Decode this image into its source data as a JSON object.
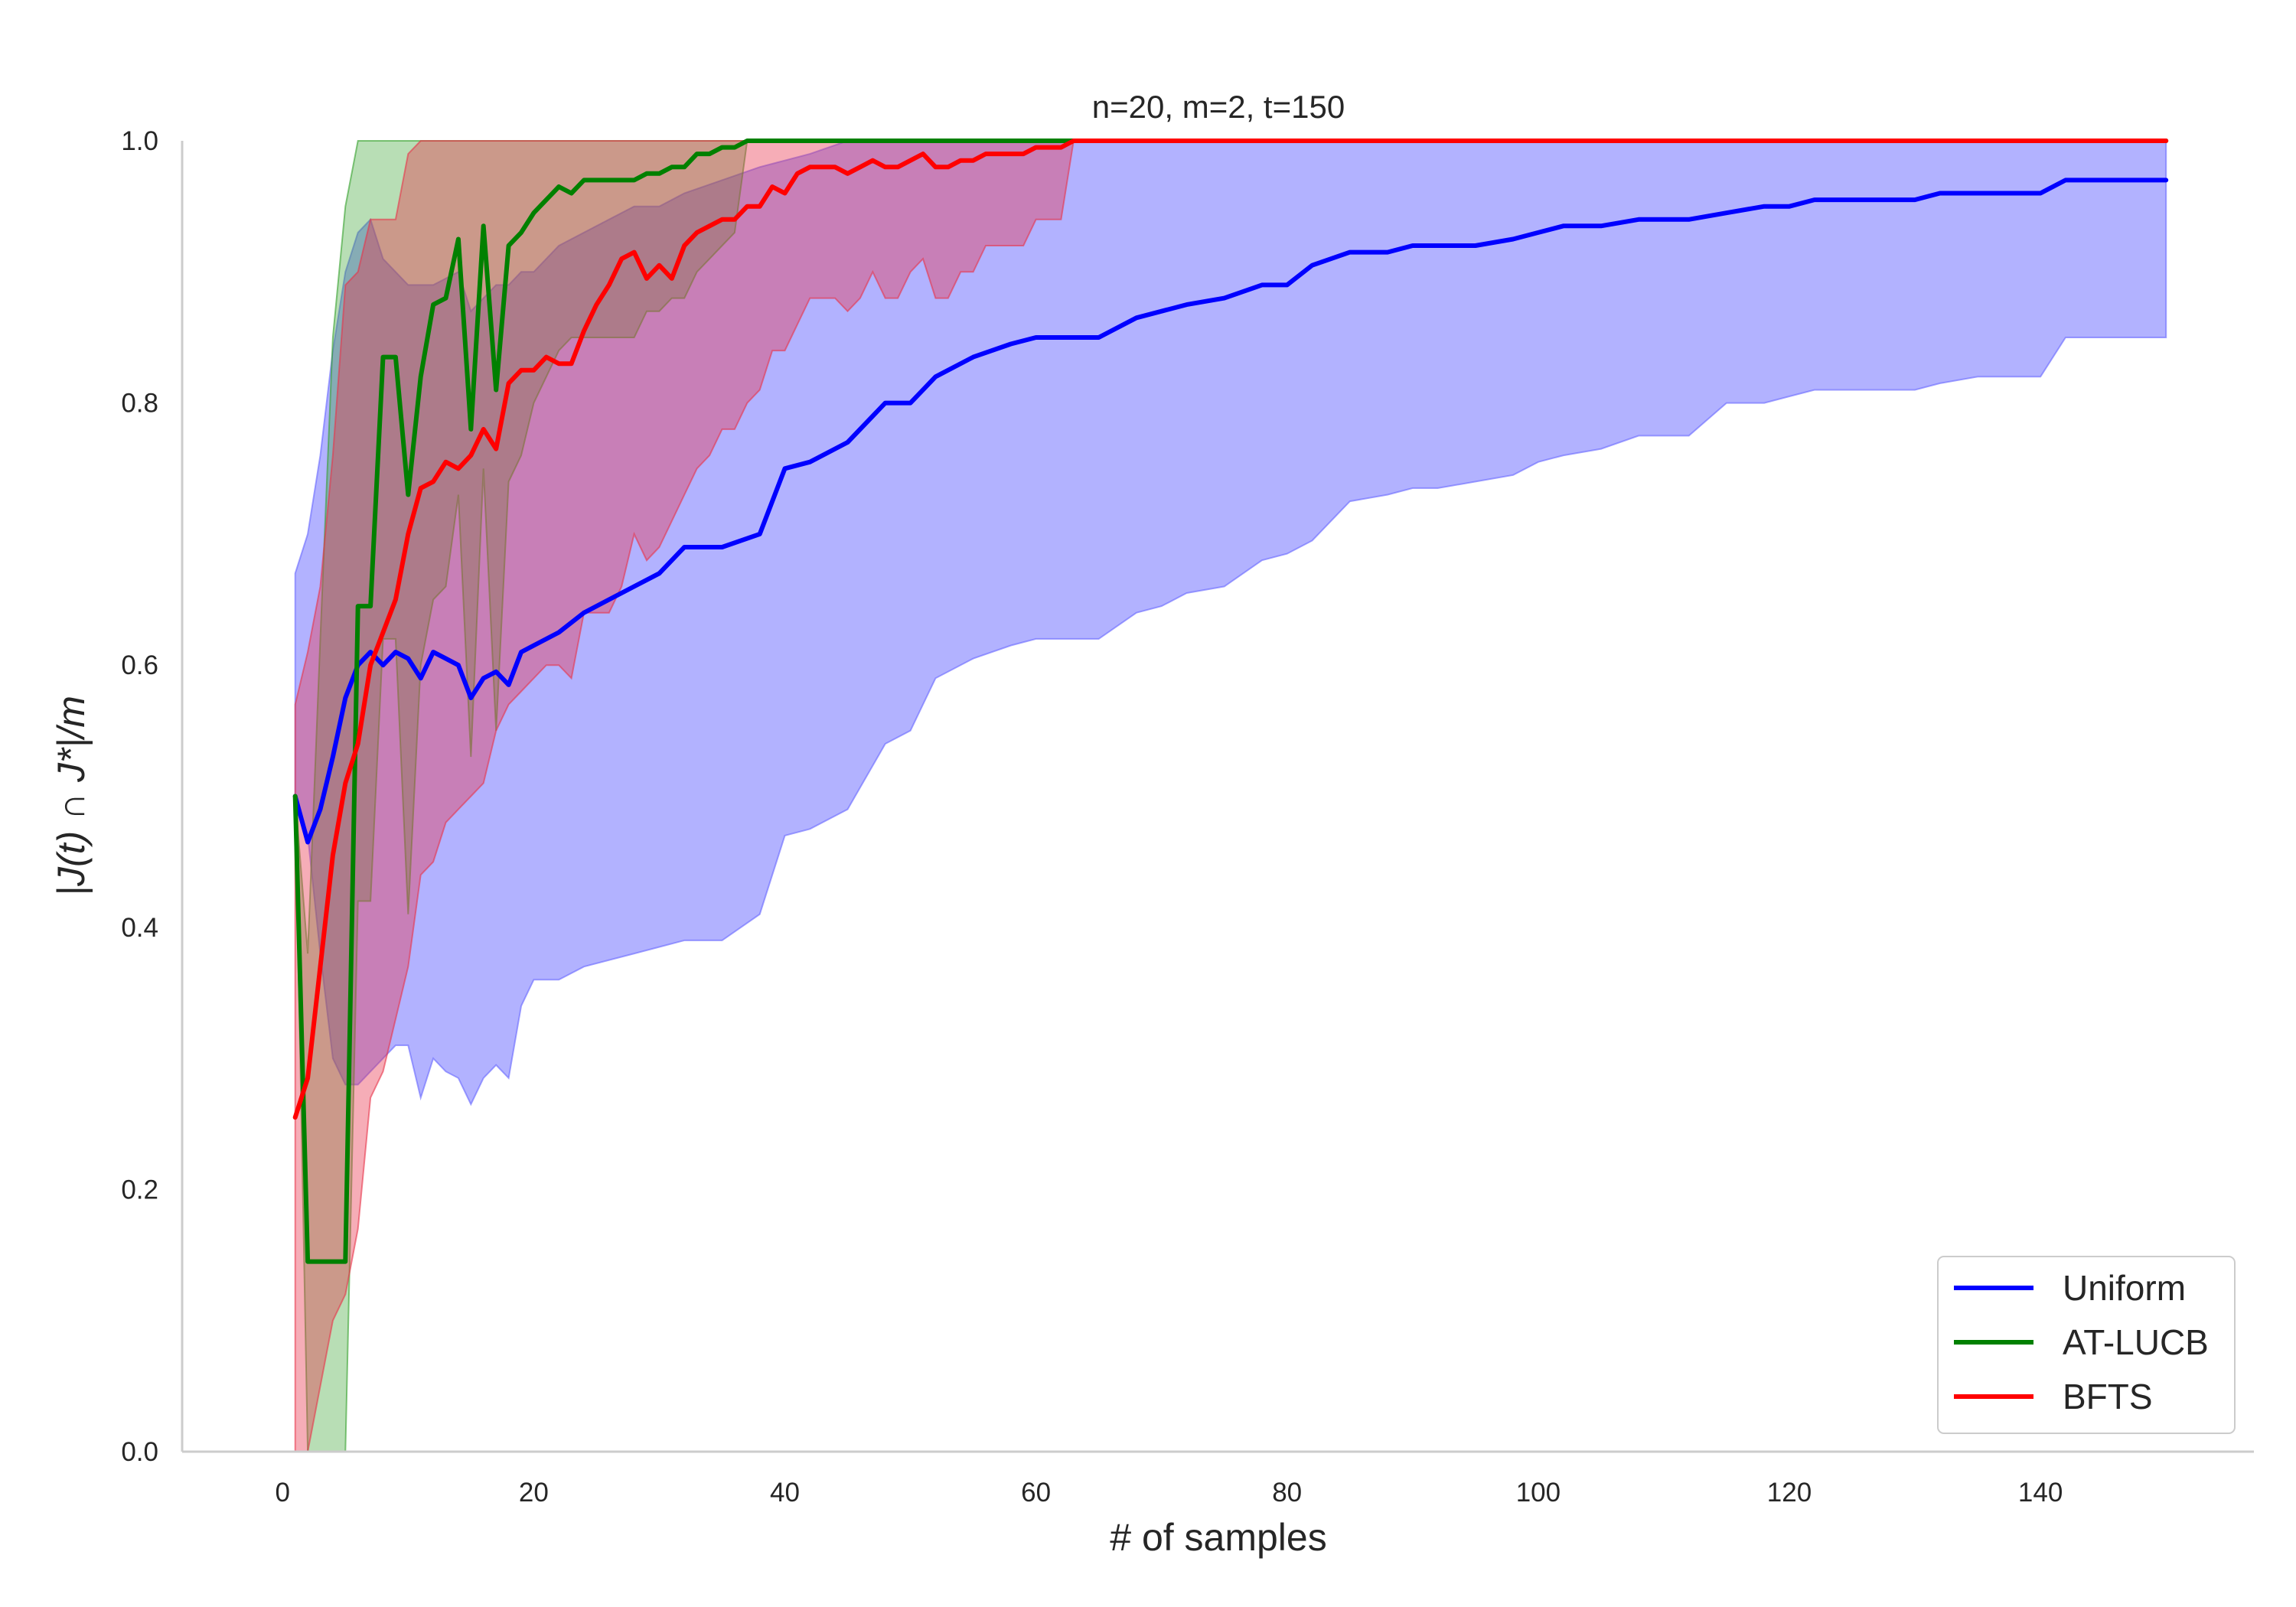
{
  "chart_data": {
    "type": "line",
    "title": "n=20, m=2, t=150",
    "xlabel": "# of samples",
    "ylabel": "|J(t) ∩ J*|/m",
    "xlim": [
      -8,
      157
    ],
    "ylim": [
      0,
      1.0
    ],
    "xticks": [
      0,
      20,
      40,
      60,
      80,
      100,
      120,
      140
    ],
    "yticks": [
      0.0,
      0.2,
      0.4,
      0.6,
      0.8,
      1.0
    ],
    "xtick_labels": [
      "0",
      "20",
      "40",
      "60",
      "80",
      "100",
      "120",
      "140"
    ],
    "ytick_labels": [
      "0.0",
      "0.2",
      "0.4",
      "0.6",
      "0.8",
      "1.0"
    ],
    "grid": false,
    "legend_position": "lower-right",
    "series": [
      {
        "name": "Uniform",
        "color": "#0000ff",
        "band_color": "#6666ff",
        "band_opacity": 0.5,
        "x": [
          1,
          2,
          3,
          4,
          5,
          6,
          7,
          8,
          9,
          10,
          11,
          12,
          13,
          14,
          15,
          16,
          17,
          18,
          19,
          20,
          22,
          24,
          26,
          28,
          30,
          32,
          35,
          38,
          40,
          42,
          45,
          48,
          50,
          52,
          55,
          58,
          60,
          62,
          65,
          68,
          70,
          72,
          75,
          78,
          80,
          82,
          85,
          88,
          90,
          92,
          95,
          98,
          100,
          102,
          105,
          108,
          110,
          112,
          115,
          118,
          120,
          122,
          125,
          128,
          130,
          132,
          135,
          138,
          140,
          142,
          145,
          148,
          150
        ],
        "y": [
          0.5,
          0.465,
          0.49,
          0.53,
          0.575,
          0.6,
          0.61,
          0.6,
          0.61,
          0.605,
          0.59,
          0.61,
          0.605,
          0.6,
          0.575,
          0.59,
          0.595,
          0.585,
          0.61,
          0.615,
          0.625,
          0.64,
          0.65,
          0.66,
          0.67,
          0.69,
          0.69,
          0.7,
          0.75,
          0.755,
          0.77,
          0.8,
          0.8,
          0.82,
          0.835,
          0.845,
          0.85,
          0.85,
          0.85,
          0.865,
          0.87,
          0.875,
          0.88,
          0.89,
          0.89,
          0.905,
          0.915,
          0.915,
          0.92,
          0.92,
          0.92,
          0.925,
          0.93,
          0.935,
          0.935,
          0.94,
          0.94,
          0.94,
          0.945,
          0.95,
          0.95,
          0.955,
          0.955,
          0.955,
          0.955,
          0.96,
          0.96,
          0.96,
          0.96,
          0.97,
          0.97,
          0.97,
          0.97
        ],
        "lower": [
          0.5,
          0.47,
          0.38,
          0.3,
          0.28,
          0.28,
          0.29,
          0.3,
          0.31,
          0.31,
          0.27,
          0.3,
          0.29,
          0.285,
          0.265,
          0.285,
          0.295,
          0.285,
          0.34,
          0.36,
          0.36,
          0.37,
          0.375,
          0.38,
          0.385,
          0.39,
          0.39,
          0.41,
          0.47,
          0.475,
          0.49,
          0.54,
          0.55,
          0.59,
          0.605,
          0.615,
          0.62,
          0.62,
          0.62,
          0.64,
          0.645,
          0.655,
          0.66,
          0.68,
          0.685,
          0.695,
          0.725,
          0.73,
          0.735,
          0.735,
          0.74,
          0.745,
          0.755,
          0.76,
          0.765,
          0.775,
          0.775,
          0.775,
          0.8,
          0.8,
          0.805,
          0.81,
          0.81,
          0.81,
          0.81,
          0.815,
          0.82,
          0.82,
          0.82,
          0.85,
          0.85,
          0.85,
          0.85
        ],
        "upper": [
          0.67,
          0.7,
          0.76,
          0.84,
          0.9,
          0.93,
          0.94,
          0.91,
          0.9,
          0.89,
          0.89,
          0.89,
          0.895,
          0.9,
          0.87,
          0.88,
          0.89,
          0.89,
          0.9,
          0.9,
          0.92,
          0.93,
          0.94,
          0.95,
          0.95,
          0.96,
          0.97,
          0.98,
          0.985,
          0.99,
          1.0,
          1.0,
          1.0,
          1.0,
          1.0,
          1.0,
          1.0,
          1.0,
          1.0,
          1.0,
          1.0,
          1.0,
          1.0,
          1.0,
          1.0,
          1.0,
          1.0,
          1.0,
          1.0,
          1.0,
          1.0,
          1.0,
          1.0,
          1.0,
          1.0,
          1.0,
          1.0,
          1.0,
          1.0,
          1.0,
          1.0,
          1.0,
          1.0,
          1.0,
          1.0,
          1.0,
          1.0,
          1.0,
          1.0,
          1.0,
          1.0,
          1.0,
          1.0
        ]
      },
      {
        "name": "AT-LUCB",
        "color": "#008000",
        "band_color": "#33a02c",
        "band_opacity": 0.35,
        "x": [
          1,
          2,
          3,
          4,
          5,
          6,
          7,
          8,
          9,
          10,
          11,
          12,
          13,
          14,
          15,
          16,
          17,
          18,
          19,
          20,
          21,
          22,
          23,
          24,
          25,
          26,
          27,
          28,
          29,
          30,
          31,
          32,
          33,
          34,
          35,
          36,
          37,
          38,
          40,
          150
        ],
        "y": [
          0.5,
          0.145,
          0.145,
          0.145,
          0.145,
          0.645,
          0.645,
          0.835,
          0.835,
          0.73,
          0.82,
          0.875,
          0.88,
          0.925,
          0.78,
          0.935,
          0.81,
          0.92,
          0.93,
          0.945,
          0.955,
          0.965,
          0.96,
          0.97,
          0.97,
          0.97,
          0.97,
          0.97,
          0.975,
          0.975,
          0.98,
          0.98,
          0.99,
          0.99,
          0.995,
          0.995,
          1.0,
          1.0,
          1.0,
          1.0
        ],
        "lower": [
          0.5,
          0.0,
          0.0,
          0.0,
          0.0,
          0.42,
          0.42,
          0.62,
          0.62,
          0.41,
          0.6,
          0.65,
          0.66,
          0.73,
          0.53,
          0.75,
          0.55,
          0.74,
          0.76,
          0.8,
          0.82,
          0.84,
          0.85,
          0.85,
          0.85,
          0.85,
          0.85,
          0.85,
          0.87,
          0.87,
          0.88,
          0.88,
          0.9,
          0.91,
          0.92,
          0.93,
          1.0,
          1.0,
          1.0,
          1.0
        ],
        "upper": [
          0.5,
          0.38,
          0.62,
          0.85,
          0.95,
          1.0,
          1.0,
          1.0,
          1.0,
          1.0,
          1.0,
          1.0,
          1.0,
          1.0,
          1.0,
          1.0,
          1.0,
          1.0,
          1.0,
          1.0,
          1.0,
          1.0,
          1.0,
          1.0,
          1.0,
          1.0,
          1.0,
          1.0,
          1.0,
          1.0,
          1.0,
          1.0,
          1.0,
          1.0,
          1.0,
          1.0,
          1.0,
          1.0,
          1.0,
          1.0
        ]
      },
      {
        "name": "BFTS",
        "color": "#ff0000",
        "band_color": "#e8334a",
        "band_opacity": 0.4,
        "x": [
          1,
          2,
          3,
          4,
          5,
          6,
          7,
          8,
          9,
          10,
          11,
          12,
          13,
          14,
          15,
          16,
          17,
          18,
          19,
          20,
          21,
          22,
          23,
          24,
          25,
          26,
          27,
          28,
          29,
          30,
          31,
          32,
          33,
          34,
          35,
          36,
          37,
          38,
          39,
          40,
          41,
          42,
          43,
          44,
          45,
          46,
          47,
          48,
          49,
          50,
          51,
          52,
          53,
          54,
          55,
          56,
          57,
          58,
          59,
          60,
          61,
          62,
          63,
          150
        ],
        "y": [
          0.255,
          0.285,
          0.37,
          0.455,
          0.51,
          0.54,
          0.6,
          0.625,
          0.65,
          0.7,
          0.735,
          0.74,
          0.755,
          0.75,
          0.76,
          0.78,
          0.765,
          0.815,
          0.825,
          0.825,
          0.835,
          0.83,
          0.83,
          0.855,
          0.875,
          0.89,
          0.91,
          0.915,
          0.895,
          0.905,
          0.895,
          0.92,
          0.93,
          0.935,
          0.94,
          0.94,
          0.95,
          0.95,
          0.965,
          0.96,
          0.975,
          0.98,
          0.98,
          0.98,
          0.975,
          0.98,
          0.985,
          0.98,
          0.98,
          0.985,
          0.99,
          0.98,
          0.98,
          0.985,
          0.985,
          0.99,
          0.99,
          0.99,
          0.99,
          0.995,
          0.995,
          0.995,
          1.0,
          1.0
        ],
        "lower": [
          0.0,
          0.0,
          0.05,
          0.1,
          0.12,
          0.17,
          0.27,
          0.29,
          0.33,
          0.37,
          0.44,
          0.45,
          0.48,
          0.49,
          0.5,
          0.51,
          0.55,
          0.57,
          0.58,
          0.59,
          0.6,
          0.6,
          0.59,
          0.64,
          0.64,
          0.64,
          0.66,
          0.7,
          0.68,
          0.69,
          0.71,
          0.73,
          0.75,
          0.76,
          0.78,
          0.78,
          0.8,
          0.81,
          0.84,
          0.84,
          0.86,
          0.88,
          0.88,
          0.88,
          0.87,
          0.88,
          0.9,
          0.88,
          0.88,
          0.9,
          0.91,
          0.88,
          0.88,
          0.9,
          0.9,
          0.92,
          0.92,
          0.92,
          0.92,
          0.94,
          0.94,
          0.94,
          1.0,
          1.0
        ],
        "upper": [
          0.57,
          0.61,
          0.66,
          0.76,
          0.89,
          0.9,
          0.94,
          0.94,
          0.94,
          0.99,
          1.0,
          1.0,
          1.0,
          1.0,
          1.0,
          1.0,
          1.0,
          1.0,
          1.0,
          1.0,
          1.0,
          1.0,
          1.0,
          1.0,
          1.0,
          1.0,
          1.0,
          1.0,
          1.0,
          1.0,
          1.0,
          1.0,
          1.0,
          1.0,
          1.0,
          1.0,
          1.0,
          1.0,
          1.0,
          1.0,
          1.0,
          1.0,
          1.0,
          1.0,
          1.0,
          1.0,
          1.0,
          1.0,
          1.0,
          1.0,
          1.0,
          1.0,
          1.0,
          1.0,
          1.0,
          1.0,
          1.0,
          1.0,
          1.0,
          1.0,
          1.0,
          1.0,
          1.0,
          1.0
        ]
      }
    ]
  }
}
